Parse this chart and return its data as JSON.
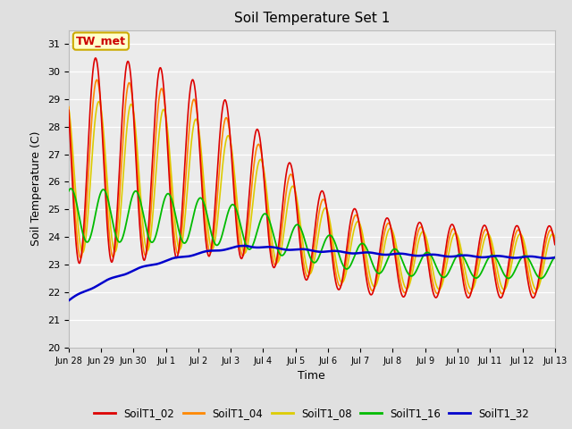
{
  "title": "Soil Temperature Set 1",
  "xlabel": "Time",
  "ylabel": "Soil Temperature (C)",
  "ylim": [
    20.0,
    31.5
  ],
  "yticks": [
    20.0,
    21.0,
    22.0,
    23.0,
    24.0,
    25.0,
    26.0,
    27.0,
    28.0,
    29.0,
    30.0,
    31.0
  ],
  "annotation_text": "TW_met",
  "annotation_box_color": "#ffffcc",
  "annotation_box_edge": "#ccaa00",
  "annotation_text_color": "#cc0000",
  "bg_color": "#e0e0e0",
  "plot_bg_color": "#ebebeb",
  "line_colors": {
    "SoilT1_02": "#dd0000",
    "SoilT1_04": "#ff8800",
    "SoilT1_08": "#ddcc00",
    "SoilT1_16": "#00bb00",
    "SoilT1_32": "#0000cc"
  },
  "legend_labels": [
    "SoilT1_02",
    "SoilT1_04",
    "SoilT1_08",
    "SoilT1_16",
    "SoilT1_32"
  ],
  "xtick_labels": [
    "Jun 28",
    "Jun 29",
    "Jun 30",
    "Jul 1",
    "Jul 2",
    "Jul 3",
    "Jul 4",
    "Jul 5",
    "Jul 6",
    "Jul 7",
    "Jul 8",
    "Jul 9",
    "Jul 10",
    "Jul 11",
    "Jul 12",
    "Jul 13"
  ]
}
